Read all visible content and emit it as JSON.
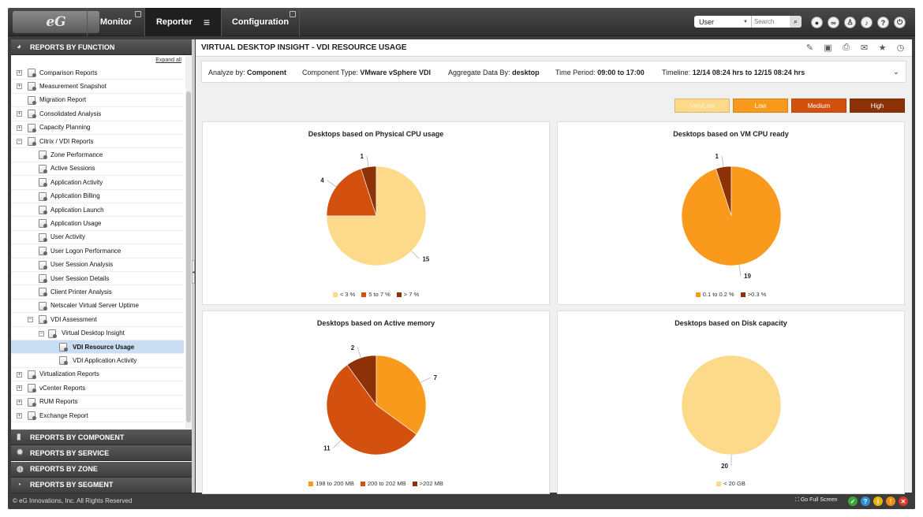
{
  "app": {
    "logo_text": "eG",
    "nav": [
      {
        "label": "Monitor"
      },
      {
        "label": "Reporter"
      },
      {
        "label": "Configuration"
      }
    ],
    "search": {
      "scope": "User",
      "placeholder": "Search"
    }
  },
  "sidebar": {
    "header": "REPORTS BY FUNCTION",
    "expand_all": "Expand all",
    "items": [
      {
        "label": "Comparison Reports",
        "level": 0,
        "toggle": "+"
      },
      {
        "label": "Measurement Snapshot",
        "level": 0,
        "toggle": "+"
      },
      {
        "label": "Migration Report",
        "level": 0,
        "toggle": ""
      },
      {
        "label": "Consolidated Analysis",
        "level": 0,
        "toggle": "+"
      },
      {
        "label": "Capacity Planning",
        "level": 0,
        "toggle": "+"
      },
      {
        "label": "Citrix / VDI Reports",
        "level": 0,
        "toggle": "−"
      },
      {
        "label": "Zone Performance",
        "level": 1,
        "toggle": ""
      },
      {
        "label": "Active Sessions",
        "level": 1,
        "toggle": ""
      },
      {
        "label": "Application Activity",
        "level": 1,
        "toggle": ""
      },
      {
        "label": "Application Billing",
        "level": 1,
        "toggle": ""
      },
      {
        "label": "Application Launch",
        "level": 1,
        "toggle": ""
      },
      {
        "label": "Application Usage",
        "level": 1,
        "toggle": ""
      },
      {
        "label": "User Activity",
        "level": 1,
        "toggle": ""
      },
      {
        "label": "User Logon Performance",
        "level": 1,
        "toggle": ""
      },
      {
        "label": "User Session Analysis",
        "level": 1,
        "toggle": ""
      },
      {
        "label": "User Session Details",
        "level": 1,
        "toggle": ""
      },
      {
        "label": "Client Printer Analysis",
        "level": 1,
        "toggle": ""
      },
      {
        "label": "Netscaler Virtual Server Uptime",
        "level": 1,
        "toggle": ""
      },
      {
        "label": "VDI Assessment",
        "level": 1,
        "toggle": "−"
      },
      {
        "label": "Virtual Desktop Insight",
        "level": 2,
        "toggle": "−"
      },
      {
        "label": "VDI Resource Usage",
        "level": 3,
        "toggle": "",
        "selected": true
      },
      {
        "label": "VDI Application Activity",
        "level": 3,
        "toggle": ""
      },
      {
        "label": "Virtualization Reports",
        "level": 0,
        "toggle": "+"
      },
      {
        "label": "vCenter Reports",
        "level": 0,
        "toggle": "+"
      },
      {
        "label": "RUM Reports",
        "level": 0,
        "toggle": "+"
      },
      {
        "label": "Exchange Report",
        "level": 0,
        "toggle": "+"
      }
    ],
    "sections": [
      {
        "label": "REPORTS BY COMPONENT",
        "icon": "server-icon"
      },
      {
        "label": "REPORTS BY SERVICE",
        "icon": "gear-icon"
      },
      {
        "label": "REPORTS BY ZONE",
        "icon": "globe-icon"
      },
      {
        "label": "REPORTS BY SEGMENT",
        "icon": "segment-icon"
      }
    ]
  },
  "main": {
    "title": "VIRTUAL DESKTOP INSIGHT - VDI RESOURCE USAGE",
    "filters": {
      "analyze_label": "Analyze by:",
      "analyze_value": "Component",
      "ctype_label": "Component Type:",
      "ctype_value": "VMware vSphere VDI",
      "agg_label": "Aggregate Data By:",
      "agg_value": "desktop",
      "period_label": "Time Period:",
      "period_value": "09:00 to 17:00",
      "timeline_label": "Timeline:",
      "timeline_value": "12/14 08:24 hrs to 12/15 08:24 hrs"
    },
    "legend_buttons": [
      {
        "label": "VeryLow",
        "color": "#fdd98a"
      },
      {
        "label": "Low",
        "color": "#f99a1c"
      },
      {
        "label": "Medium",
        "color": "#d4500f"
      },
      {
        "label": "High",
        "color": "#8c3206"
      }
    ]
  },
  "chart_data": [
    {
      "type": "pie",
      "title": "Desktops based on Physical CPU usage",
      "categories": [
        "< 3 %",
        "5 to 7 %",
        "> 7 %"
      ],
      "values": [
        15,
        4,
        1
      ],
      "colors": [
        "#fdd98a",
        "#d4500f",
        "#8c3206"
      ]
    },
    {
      "type": "pie",
      "title": "Desktops based on VM CPU ready",
      "categories": [
        "0.1 to 0.2 %",
        ">0.3 %"
      ],
      "values": [
        19,
        1
      ],
      "colors": [
        "#f99a1c",
        "#8c3206"
      ]
    },
    {
      "type": "pie",
      "title": "Desktops based on Active memory",
      "categories": [
        "198 to 200 MB",
        "200 to 202 MB",
        ">202 MB"
      ],
      "values": [
        7,
        11,
        2
      ],
      "colors": [
        "#f99a1c",
        "#d4500f",
        "#8c3206"
      ]
    },
    {
      "type": "pie",
      "title": "Desktops based on Disk capacity",
      "categories": [
        "< 20 GB"
      ],
      "values": [
        20
      ],
      "colors": [
        "#fdd98a"
      ]
    }
  ],
  "footer": {
    "copyright": "© eG Innovations, Inc. All Rights Reserved",
    "full_screen": "Go Full Screen",
    "status": [
      {
        "icon": "ok-icon",
        "color": "#3aa63a",
        "glyph": "✓"
      },
      {
        "icon": "help-icon",
        "color": "#2f8fd8",
        "glyph": "?"
      },
      {
        "icon": "info-icon",
        "color": "#e6b412",
        "glyph": "i"
      },
      {
        "icon": "warning-icon",
        "color": "#f08c12",
        "glyph": "!"
      },
      {
        "icon": "close-icon",
        "color": "#d93a2a",
        "glyph": "✕"
      }
    ]
  }
}
